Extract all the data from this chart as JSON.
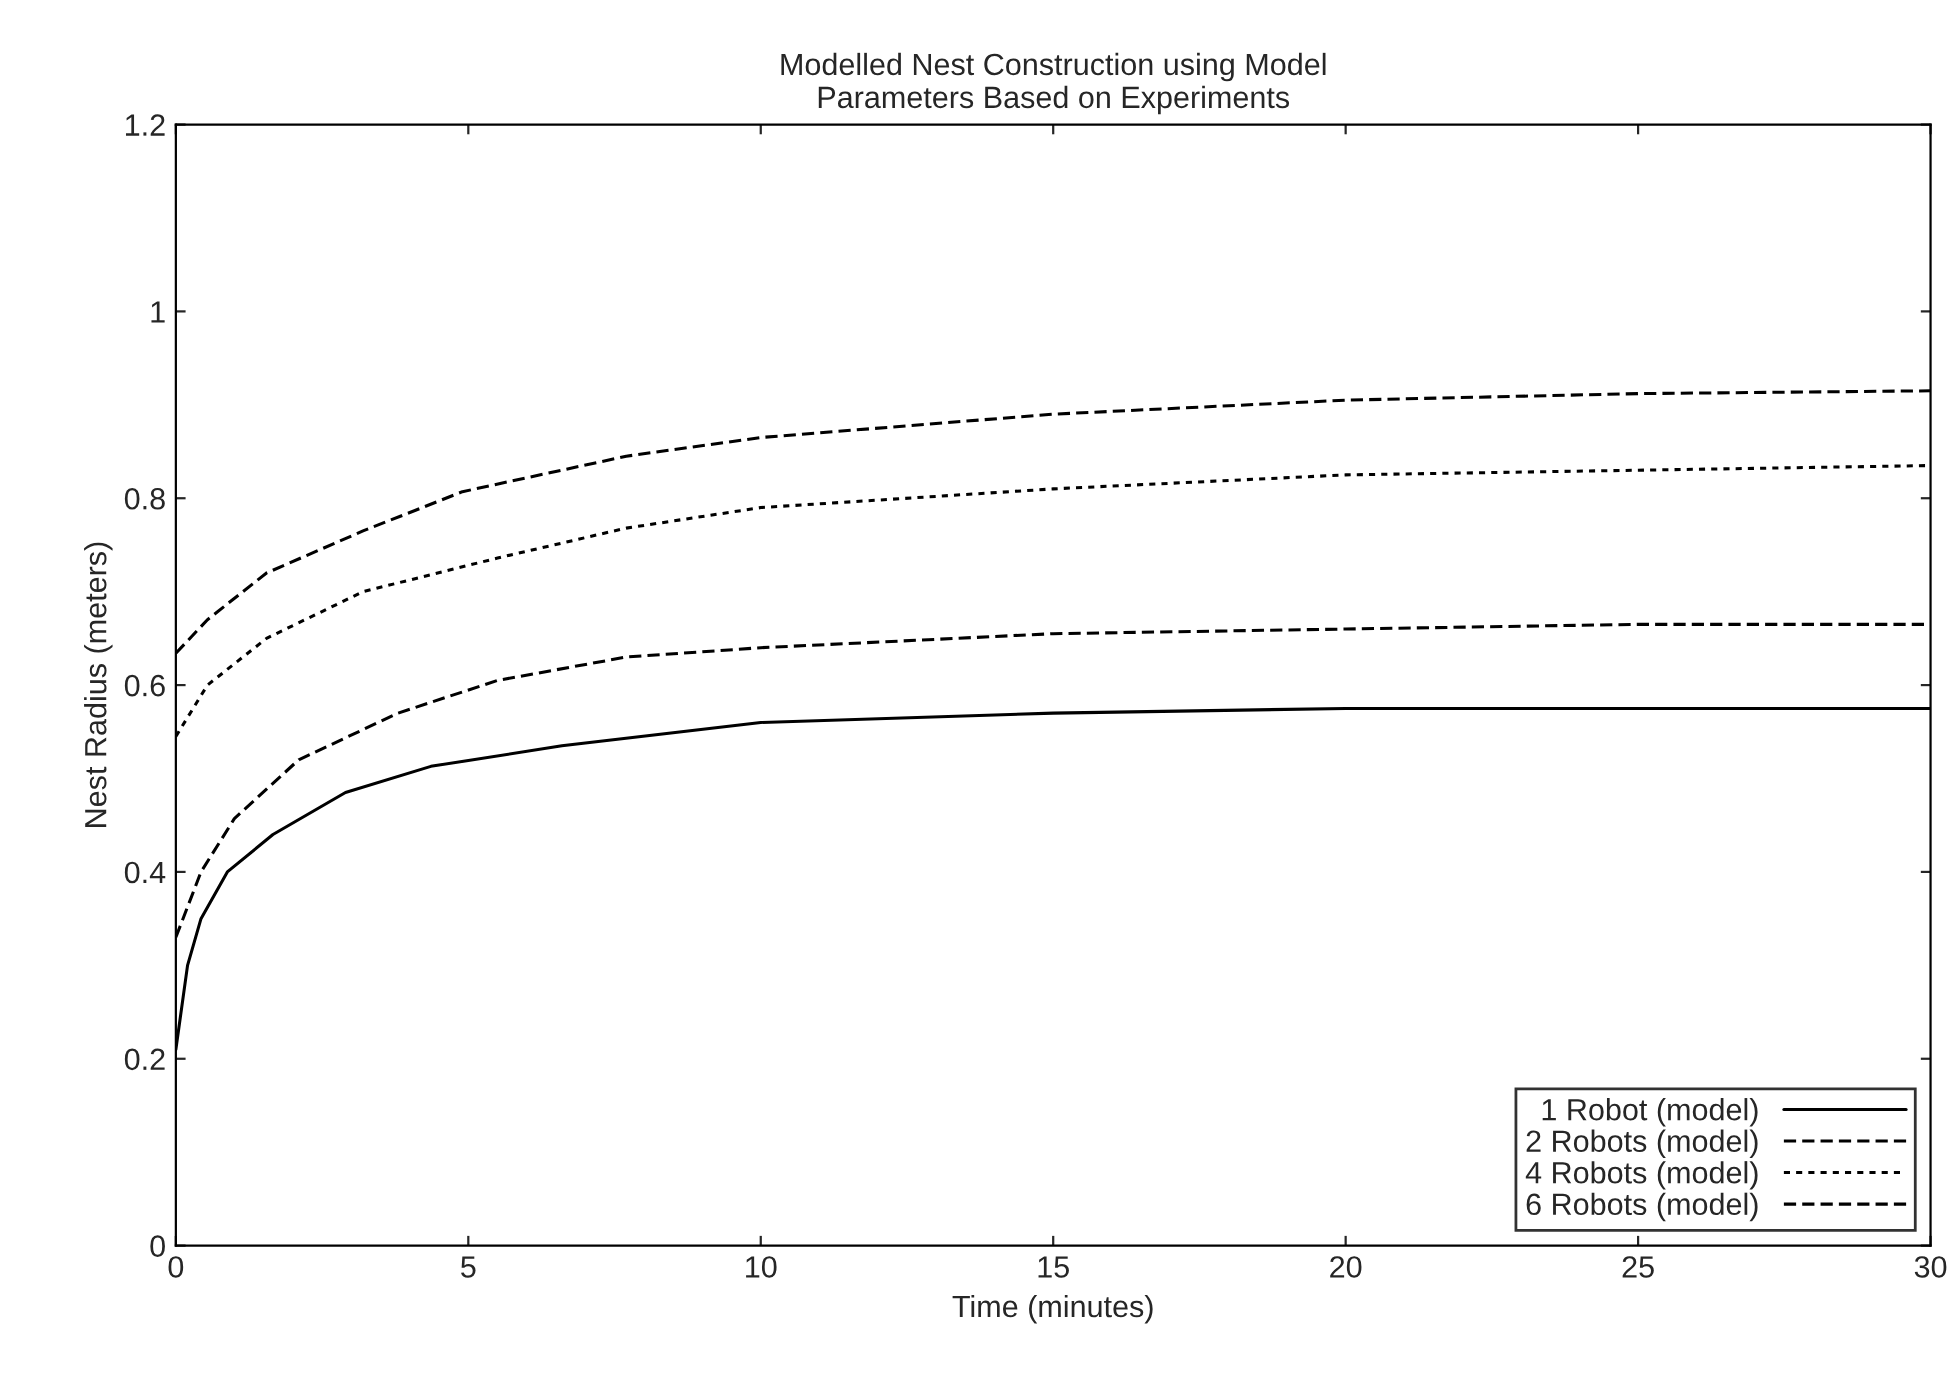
{
  "chart_data": {
    "type": "line",
    "title": "Modelled Nest Construction using Model\nParameters Based on Experiments",
    "xlabel": "Time (minutes)",
    "ylabel": "Nest Radius (meters)",
    "xlim": [
      0,
      30
    ],
    "ylim": [
      0,
      1.2
    ],
    "xticks": [
      0,
      5,
      10,
      15,
      20,
      25,
      30
    ],
    "yticks": [
      0,
      {
        "value": 0.2,
        "label": "0.2"
      },
      {
        "value": 0.4,
        "label": "0.4"
      },
      {
        "value": 0.6,
        "label": "0.6"
      },
      {
        "value": 0.8,
        "label": "0.8"
      },
      1,
      {
        "value": 1.2,
        "label": "1.2"
      }
    ],
    "grid": false,
    "legend": "bottom right",
    "marker": "none",
    "series": [
      {
        "name": "1 Robot (model)",
        "color": "#000000",
        "line_style": "solid",
        "x": [
          0,
          0.2,
          0.43,
          0.88,
          1.66,
          2.9,
          4.36,
          6.6,
          10,
          15,
          20,
          25,
          30
        ],
        "values": [
          0.21,
          0.3,
          0.35,
          0.4,
          0.44,
          0.485,
          0.513,
          0.535,
          0.56,
          0.57,
          0.575,
          0.575,
          0.575
        ]
      },
      {
        "name": "2 Robots (model)",
        "color": "#000000",
        "line_style": "dashed",
        "x": [
          0,
          0.43,
          1,
          2.1,
          3.8,
          5.5,
          7.7,
          10,
          15,
          20,
          25,
          30
        ],
        "values": [
          0.33,
          0.4,
          0.457,
          0.52,
          0.57,
          0.605,
          0.63,
          0.64,
          0.655,
          0.66,
          0.665,
          0.665
        ]
      },
      {
        "name": "4 Robots (model)",
        "color": "#000000",
        "line_style": "dotted",
        "x": [
          0,
          0.54,
          1.55,
          3.2,
          5.5,
          7.7,
          10,
          15,
          20,
          25,
          30
        ],
        "values": [
          0.545,
          0.6,
          0.65,
          0.7,
          0.736,
          0.768,
          0.79,
          0.81,
          0.825,
          0.83,
          0.835
        ]
      },
      {
        "name": "6 Robots (model)",
        "color": "#000000",
        "line_style": "dashed",
        "x": [
          0,
          0.54,
          1.55,
          3.2,
          4.9,
          7.7,
          10,
          15,
          20,
          25,
          30
        ],
        "values": [
          0.634,
          0.67,
          0.72,
          0.765,
          0.807,
          0.845,
          0.865,
          0.89,
          0.905,
          0.912,
          0.915
        ]
      }
    ]
  }
}
